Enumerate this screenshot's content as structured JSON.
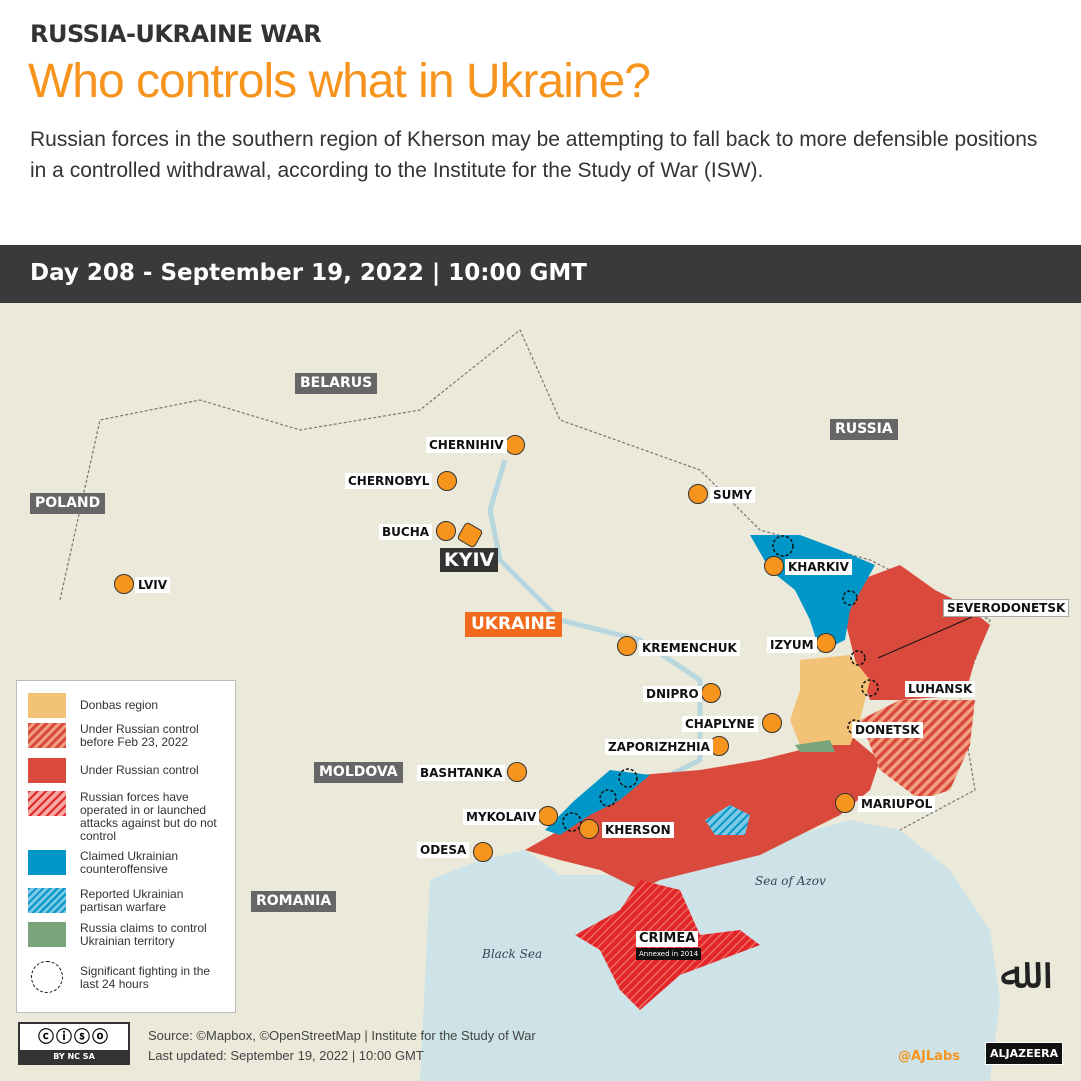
{
  "header": {
    "kicker": "RUSSIA-UKRAINE WAR",
    "title": "Who controls what in Ukraine?",
    "description": "Russian forces in the southern region of Kherson may be attempting to fall back to more defensible positions in a controlled withdrawal, according to the Institute for the Study of War (ISW).",
    "day_bar": "Day 208 - September 19, 2022 | 10:00 GMT"
  },
  "colors": {
    "accent": "#f7941d",
    "donbas": "#f2c277",
    "russian_control": "#d94a3d",
    "counteroffensive": "#0097c8",
    "russia_claims": "#7aa57c",
    "sea": "#cde3e8",
    "land": "#ebe9da"
  },
  "map": {
    "countries": {
      "belarus": "BELARUS",
      "russia": "RUSSIA",
      "poland": "POLAND",
      "moldova": "MOLDOVA",
      "romania": "ROMANIA",
      "ukraine": "UKRAINE"
    },
    "seas": {
      "azov": "Sea of Azov",
      "black": "Black Sea"
    },
    "cities": {
      "chernihiv": "CHERNIHIV",
      "chernobyl": "CHERNOBYL",
      "sumy": "SUMY",
      "bucha": "BUCHA",
      "kyiv": "KYIV",
      "lviv": "LVIV",
      "kharkiv": "KHARKIV",
      "kremenchuk": "KREMENCHUK",
      "izyum": "IZYUM",
      "dnipro": "DNIPRO",
      "chaplyne": "CHAPLYNE",
      "zaporizhzhia": "ZAPORIZHZHIA",
      "bashtanka": "BASHTANKA",
      "mykolaiv": "MYKOLAIV",
      "kherson": "KHERSON",
      "odesa": "ODESA",
      "mariupol": "MARIUPOL"
    },
    "regions": {
      "severodonetsk": "SEVERODONETSK",
      "luhansk": "LUHANSK",
      "donetsk": "DONETSK",
      "crimea": "CRIMEA",
      "crimea_note": "Annexed in 2014"
    }
  },
  "legend": [
    {
      "label": "Donbas region"
    },
    {
      "label": "Under Russian control before Feb 23, 2022"
    },
    {
      "label": "Under Russian control"
    },
    {
      "label": "Russian forces have operated in or launched attacks against but do not control"
    },
    {
      "label": "Claimed Ukrainian counteroffensive"
    },
    {
      "label": "Reported Ukrainian partisan warfare"
    },
    {
      "label": "Russia claims to control Ukrainian territory"
    },
    {
      "label": "Significant fighting in the last 24 hours"
    }
  ],
  "footer": {
    "license": "BY NC SA",
    "source": "Source: ©Mapbox, ©OpenStreetMap  |  Institute for the Study of War",
    "updated": "Last updated: September 19, 2022  |  10:00 GMT",
    "handle": "@AJLabs",
    "brand": "ALJAZEERA"
  }
}
